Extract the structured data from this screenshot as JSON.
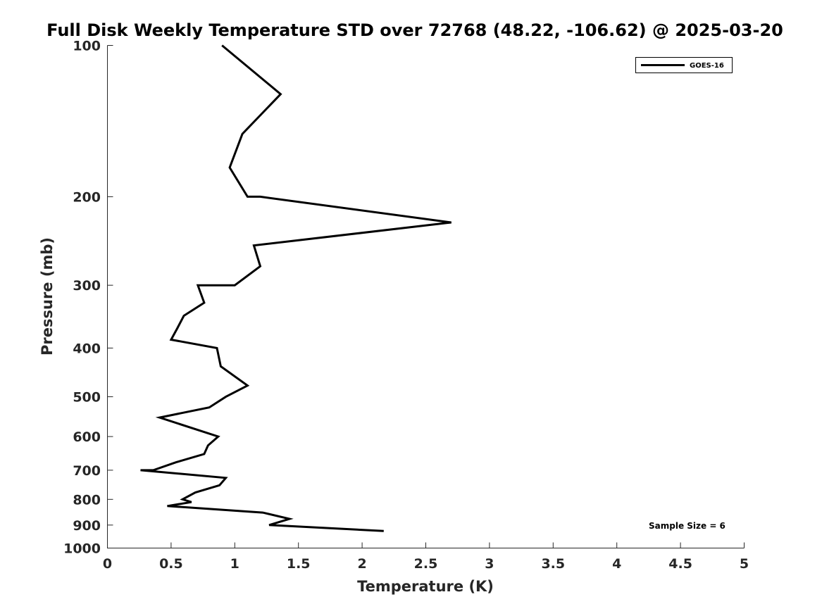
{
  "chart_data": {
    "type": "line",
    "title": "Full Disk Weekly Temperature STD over 72768 (48.22, -106.62) @ 2025-03-20",
    "xlabel": "Temperature (K)",
    "ylabel": "Pressure (mb)",
    "xlim": [
      0,
      5
    ],
    "ylim": [
      1000,
      100
    ],
    "y_scale": "log",
    "y_reversed": true,
    "grid": false,
    "legend_position": "top-right",
    "x_ticks": [
      {
        "value": 0,
        "label": "0"
      },
      {
        "value": 0.5,
        "label": "0.5"
      },
      {
        "value": 1,
        "label": "1"
      },
      {
        "value": 1.5,
        "label": "1.5"
      },
      {
        "value": 2,
        "label": "2"
      },
      {
        "value": 2.5,
        "label": "2.5"
      },
      {
        "value": 3,
        "label": "3"
      },
      {
        "value": 3.5,
        "label": "3.5"
      },
      {
        "value": 4,
        "label": "4"
      },
      {
        "value": 4.5,
        "label": "4.5"
      },
      {
        "value": 5,
        "label": "5"
      }
    ],
    "y_ticks": [
      {
        "value": 100,
        "label": "100"
      },
      {
        "value": 200,
        "label": "200"
      },
      {
        "value": 300,
        "label": "300"
      },
      {
        "value": 400,
        "label": "400"
      },
      {
        "value": 500,
        "label": "500"
      },
      {
        "value": 600,
        "label": "600"
      },
      {
        "value": 700,
        "label": "700"
      },
      {
        "value": 800,
        "label": "800"
      },
      {
        "value": 900,
        "label": "900"
      },
      {
        "value": 1000,
        "label": "1000"
      }
    ],
    "series": [
      {
        "name": "GOES-16",
        "color": "#000000",
        "points": [
          {
            "x": 0.9,
            "y": 100
          },
          {
            "x": 1.36,
            "y": 125
          },
          {
            "x": 1.06,
            "y": 150
          },
          {
            "x": 0.96,
            "y": 175
          },
          {
            "x": 1.1,
            "y": 200
          },
          {
            "x": 1.2,
            "y": 200
          },
          {
            "x": 2.7,
            "y": 225
          },
          {
            "x": 1.15,
            "y": 250
          },
          {
            "x": 1.2,
            "y": 275
          },
          {
            "x": 1.0,
            "y": 300
          },
          {
            "x": 0.8,
            "y": 300
          },
          {
            "x": 0.71,
            "y": 300
          },
          {
            "x": 0.76,
            "y": 325
          },
          {
            "x": 0.6,
            "y": 345
          },
          {
            "x": 0.55,
            "y": 365
          },
          {
            "x": 0.5,
            "y": 385
          },
          {
            "x": 0.86,
            "y": 400
          },
          {
            "x": 0.89,
            "y": 435
          },
          {
            "x": 1.1,
            "y": 475
          },
          {
            "x": 0.93,
            "y": 500
          },
          {
            "x": 0.8,
            "y": 525
          },
          {
            "x": 0.41,
            "y": 550
          },
          {
            "x": 0.87,
            "y": 600
          },
          {
            "x": 0.79,
            "y": 625
          },
          {
            "x": 0.76,
            "y": 650
          },
          {
            "x": 0.54,
            "y": 675
          },
          {
            "x": 0.36,
            "y": 700
          },
          {
            "x": 0.26,
            "y": 700
          },
          {
            "x": 0.93,
            "y": 725
          },
          {
            "x": 0.88,
            "y": 750
          },
          {
            "x": 0.69,
            "y": 775
          },
          {
            "x": 0.59,
            "y": 800
          },
          {
            "x": 0.66,
            "y": 810
          },
          {
            "x": 0.47,
            "y": 825
          },
          {
            "x": 1.22,
            "y": 850
          },
          {
            "x": 1.43,
            "y": 875
          },
          {
            "x": 1.27,
            "y": 900
          },
          {
            "x": 2.17,
            "y": 925
          }
        ]
      }
    ],
    "annotations": [
      {
        "text": "Sample Size = 6"
      }
    ]
  }
}
